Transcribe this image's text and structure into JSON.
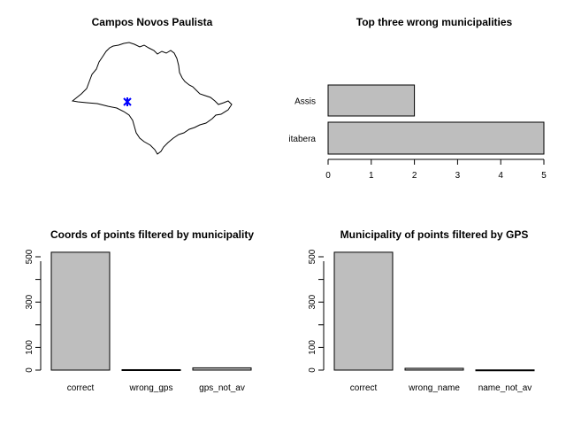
{
  "chart_data": [
    {
      "type": "map",
      "title": "Campos Novos Paulista",
      "marker_color": "#0000ff",
      "marker_count": 1
    },
    {
      "type": "bar",
      "orientation": "horizontal",
      "title": "Top three wrong municipalities",
      "categories": [
        "Assis",
        "itabera"
      ],
      "values": [
        2,
        5
      ],
      "xlim": [
        0,
        5
      ],
      "x_ticks": [
        "0",
        "1",
        "2",
        "3",
        "4",
        "5"
      ],
      "bar_color": "#bebebe"
    },
    {
      "type": "bar",
      "orientation": "vertical",
      "title": "Coords of points filtered by municipality",
      "categories": [
        "correct",
        "wrong_gps",
        "gps_not_av"
      ],
      "values": [
        520,
        2,
        10
      ],
      "ylim": [
        0,
        500
      ],
      "y_ticks": [
        "0",
        "100",
        "300",
        "500"
      ],
      "bar_color": "#bebebe"
    },
    {
      "type": "bar",
      "orientation": "vertical",
      "title": "Municipality of points filtered by GPS",
      "categories": [
        "correct",
        "wrong_name",
        "name_not_av"
      ],
      "values": [
        520,
        8,
        1
      ],
      "ylim": [
        0,
        500
      ],
      "y_ticks": [
        "0",
        "100",
        "300",
        "500"
      ],
      "bar_color": "#bebebe"
    }
  ]
}
